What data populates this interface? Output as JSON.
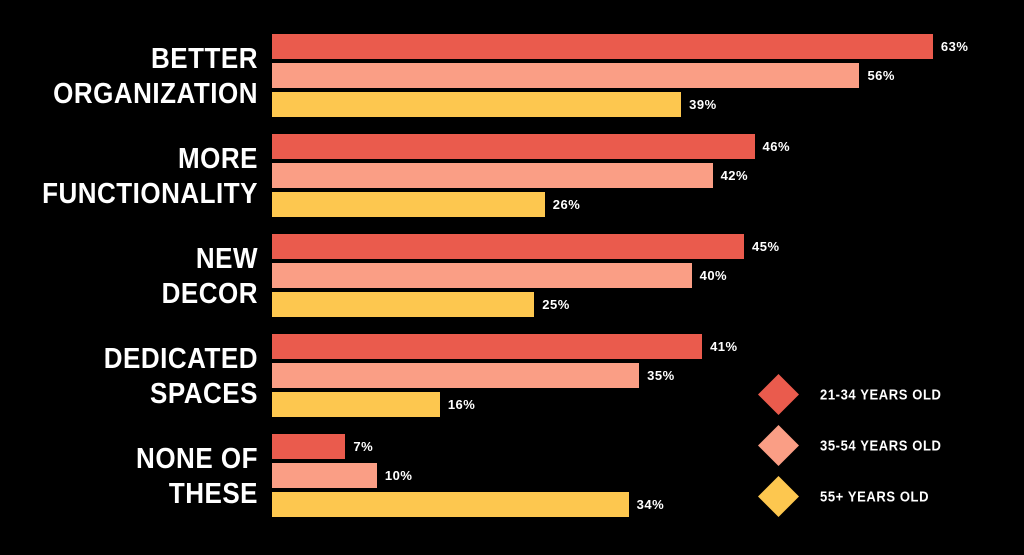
{
  "chart_data": {
    "type": "bar",
    "orientation": "horizontal",
    "title": "",
    "background": "#000000",
    "text_color": "#ffffff",
    "grid": false,
    "data_labels": true,
    "value_suffix": "%",
    "xlim": [
      0,
      70
    ],
    "categories": [
      "BETTER ORGANIZATION",
      "MORE FUNCTIONALITY",
      "NEW DECOR",
      "DEDICATED SPACES",
      "NONE OF THESE"
    ],
    "category_label_lines": [
      [
        "BETTER",
        "ORGANIZATION"
      ],
      [
        "MORE",
        "FUNCTIONALITY"
      ],
      [
        "NEW",
        "DECOR"
      ],
      [
        "DEDICATED",
        "SPACES"
      ],
      [
        "NONE OF",
        "THESE"
      ]
    ],
    "series": [
      {
        "name": "21-34 YEARS OLD",
        "color": "#ea5b4d",
        "values": [
          63,
          46,
          45,
          41,
          7
        ]
      },
      {
        "name": "35-54 YEARS OLD",
        "color": "#fa9e85",
        "values": [
          56,
          42,
          40,
          35,
          10
        ]
      },
      {
        "name": "55+ YEARS OLD",
        "color": "#fdc74f",
        "values": [
          39,
          26,
          25,
          16,
          34
        ]
      }
    ],
    "legend": {
      "position": "bottom-right",
      "marker": "diamond",
      "items": [
        {
          "label": "21-34 YEARS OLD",
          "color": "#ea5b4d"
        },
        {
          "label": "35-54 YEARS OLD",
          "color": "#fa9e85"
        },
        {
          "label": "55+ YEARS OLD",
          "color": "#fdc74f"
        }
      ]
    }
  }
}
